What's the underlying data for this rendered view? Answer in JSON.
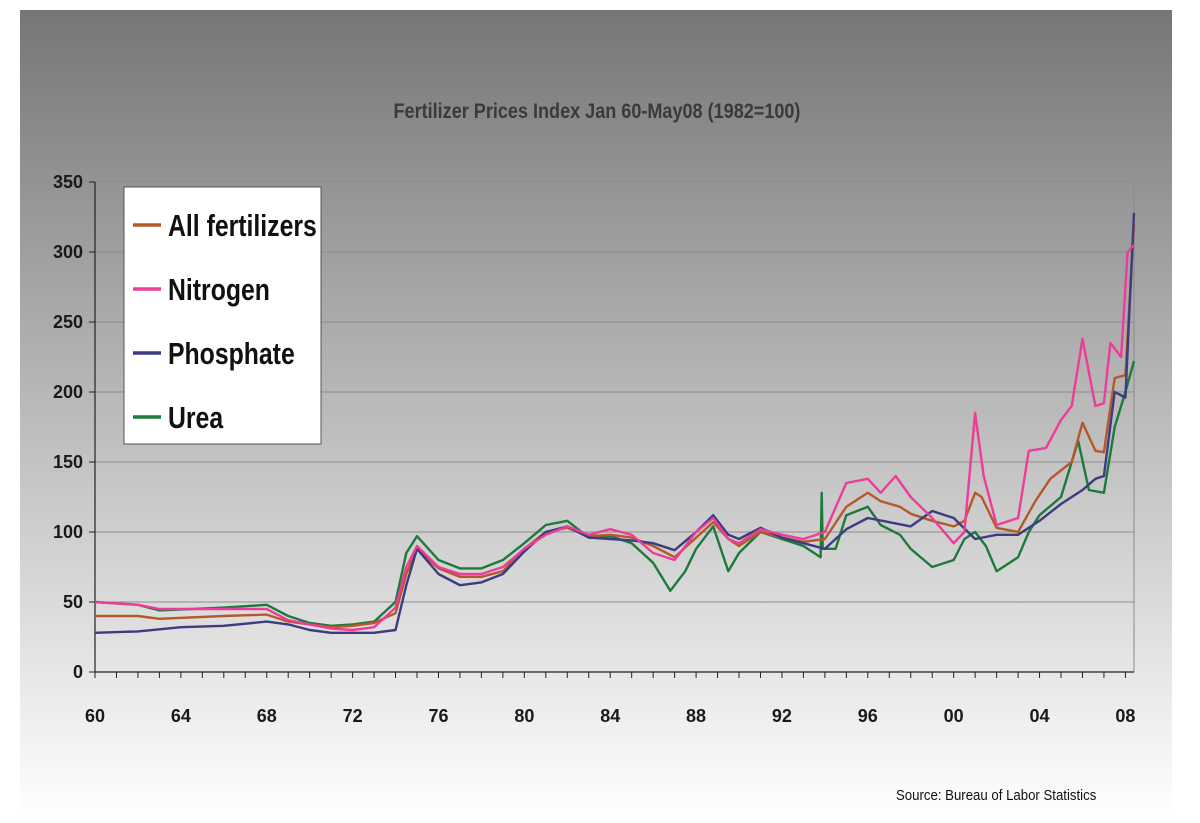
{
  "colors": {
    "background_top": "#767676",
    "background_bottom": "#ffffff"
  },
  "source": "Source: Bureau of Labor Statistics",
  "chart_data": {
    "type": "line",
    "title": "Fertilizer Prices Index Jan 60-May08 (1982=100)",
    "xlabel": "",
    "ylabel": "",
    "xlim": [
      1960,
      2008.4
    ],
    "ylim": [
      0,
      350
    ],
    "x_ticks": [
      1960,
      1964,
      1968,
      1972,
      1976,
      1980,
      1984,
      1988,
      1992,
      1996,
      2000,
      2004,
      2008
    ],
    "x_tick_labels": [
      "60",
      "64",
      "68",
      "72",
      "76",
      "80",
      "84",
      "88",
      "92",
      "96",
      "00",
      "04",
      "08"
    ],
    "y_ticks": [
      0,
      50,
      100,
      150,
      200,
      250,
      300,
      350
    ],
    "y_tick_labels": [
      "0",
      "50",
      "100",
      "150",
      "200",
      "250",
      "300",
      "350"
    ],
    "grid": "horizontal",
    "legend_position": "top-left",
    "series": [
      {
        "name": "All fertilizers",
        "color": "#b5592a",
        "points": [
          [
            1960,
            40
          ],
          [
            1962,
            40
          ],
          [
            1963,
            38
          ],
          [
            1966,
            40
          ],
          [
            1968,
            41
          ],
          [
            1969,
            36
          ],
          [
            1970,
            34
          ],
          [
            1971,
            32
          ],
          [
            1972,
            33
          ],
          [
            1973,
            35
          ],
          [
            1974,
            42
          ],
          [
            1974.5,
            70
          ],
          [
            1975,
            88
          ],
          [
            1976,
            74
          ],
          [
            1977,
            68
          ],
          [
            1978,
            68
          ],
          [
            1979,
            72
          ],
          [
            1980,
            88
          ],
          [
            1981,
            100
          ],
          [
            1982,
            103
          ],
          [
            1983,
            97
          ],
          [
            1984,
            98
          ],
          [
            1985,
            96
          ],
          [
            1986,
            90
          ],
          [
            1987,
            82
          ],
          [
            1988,
            96
          ],
          [
            1988.8,
            107
          ],
          [
            1989.5,
            95
          ],
          [
            1990,
            90
          ],
          [
            1991,
            100
          ],
          [
            1992,
            96
          ],
          [
            1993,
            93
          ],
          [
            1994,
            95
          ],
          [
            1995,
            118
          ],
          [
            1996,
            128
          ],
          [
            1996.6,
            122
          ],
          [
            1997.5,
            118
          ],
          [
            1998,
            113
          ],
          [
            1999,
            108
          ],
          [
            2000,
            104
          ],
          [
            2000.5,
            108
          ],
          [
            2001,
            128
          ],
          [
            2001.3,
            125
          ],
          [
            2002,
            103
          ],
          [
            2003,
            100
          ],
          [
            2003.8,
            122
          ],
          [
            2004.5,
            138
          ],
          [
            2005.5,
            150
          ],
          [
            2006,
            178
          ],
          [
            2006.6,
            158
          ],
          [
            2007,
            157
          ],
          [
            2007.5,
            210
          ],
          [
            2008,
            212
          ],
          [
            2008.4,
            320
          ]
        ]
      },
      {
        "name": "Nitrogen",
        "color": "#ee3c9a",
        "points": [
          [
            1960,
            50
          ],
          [
            1962,
            48
          ],
          [
            1963,
            45
          ],
          [
            1966,
            45
          ],
          [
            1968,
            45
          ],
          [
            1969,
            37
          ],
          [
            1970,
            34
          ],
          [
            1971,
            31
          ],
          [
            1972,
            30
          ],
          [
            1973,
            32
          ],
          [
            1974,
            46
          ],
          [
            1974.5,
            75
          ],
          [
            1975,
            90
          ],
          [
            1976,
            75
          ],
          [
            1977,
            70
          ],
          [
            1978,
            70
          ],
          [
            1979,
            75
          ],
          [
            1980,
            88
          ],
          [
            1981,
            98
          ],
          [
            1982,
            104
          ],
          [
            1983,
            98
          ],
          [
            1984,
            102
          ],
          [
            1985,
            98
          ],
          [
            1986,
            85
          ],
          [
            1987,
            80
          ],
          [
            1988,
            100
          ],
          [
            1988.8,
            110
          ],
          [
            1989.5,
            95
          ],
          [
            1990,
            92
          ],
          [
            1991,
            102
          ],
          [
            1992,
            98
          ],
          [
            1993,
            95
          ],
          [
            1994,
            100
          ],
          [
            1995,
            135
          ],
          [
            1996,
            138
          ],
          [
            1996.6,
            128
          ],
          [
            1997.3,
            140
          ],
          [
            1998,
            125
          ],
          [
            1999,
            110
          ],
          [
            2000,
            92
          ],
          [
            2000.5,
            100
          ],
          [
            2001,
            185
          ],
          [
            2001.4,
            140
          ],
          [
            2002,
            105
          ],
          [
            2003,
            110
          ],
          [
            2003.5,
            158
          ],
          [
            2004.3,
            160
          ],
          [
            2005,
            180
          ],
          [
            2005.5,
            190
          ],
          [
            2006,
            238
          ],
          [
            2006.6,
            190
          ],
          [
            2007,
            192
          ],
          [
            2007.3,
            235
          ],
          [
            2007.8,
            225
          ],
          [
            2008.1,
            300
          ],
          [
            2008.4,
            305
          ]
        ]
      },
      {
        "name": "Phosphate",
        "color": "#3c3c80",
        "points": [
          [
            1960,
            28
          ],
          [
            1962,
            29
          ],
          [
            1964,
            32
          ],
          [
            1966,
            33
          ],
          [
            1968,
            36
          ],
          [
            1969,
            34
          ],
          [
            1970,
            30
          ],
          [
            1971,
            28
          ],
          [
            1972,
            28
          ],
          [
            1973,
            28
          ],
          [
            1974,
            30
          ],
          [
            1974.5,
            62
          ],
          [
            1975,
            88
          ],
          [
            1976,
            70
          ],
          [
            1977,
            62
          ],
          [
            1978,
            64
          ],
          [
            1979,
            70
          ],
          [
            1980,
            86
          ],
          [
            1981,
            100
          ],
          [
            1982,
            104
          ],
          [
            1983,
            96
          ],
          [
            1984,
            95
          ],
          [
            1985,
            94
          ],
          [
            1986,
            92
          ],
          [
            1987,
            87
          ],
          [
            1988,
            100
          ],
          [
            1988.8,
            112
          ],
          [
            1989.5,
            98
          ],
          [
            1990,
            95
          ],
          [
            1991,
            103
          ],
          [
            1992,
            96
          ],
          [
            1993,
            92
          ],
          [
            1994,
            88
          ],
          [
            1995,
            102
          ],
          [
            1996,
            110
          ],
          [
            1997,
            107
          ],
          [
            1998,
            104
          ],
          [
            1999,
            115
          ],
          [
            2000,
            110
          ],
          [
            2001,
            95
          ],
          [
            2002,
            98
          ],
          [
            2003,
            98
          ],
          [
            2004,
            108
          ],
          [
            2005,
            120
          ],
          [
            2006,
            130
          ],
          [
            2006.6,
            138
          ],
          [
            2007,
            140
          ],
          [
            2007.5,
            200
          ],
          [
            2008,
            196
          ],
          [
            2008.4,
            328
          ]
        ]
      },
      {
        "name": "Urea",
        "color": "#1c7a3c",
        "points": [
          [
            1960,
            50
          ],
          [
            1962,
            48
          ],
          [
            1963,
            44
          ],
          [
            1966,
            46
          ],
          [
            1968,
            48
          ],
          [
            1969,
            40
          ],
          [
            1970,
            35
          ],
          [
            1971,
            33
          ],
          [
            1972,
            34
          ],
          [
            1973,
            36
          ],
          [
            1974,
            50
          ],
          [
            1974.5,
            85
          ],
          [
            1975,
            97
          ],
          [
            1976,
            80
          ],
          [
            1977,
            74
          ],
          [
            1978,
            74
          ],
          [
            1979,
            80
          ],
          [
            1980,
            92
          ],
          [
            1981,
            105
          ],
          [
            1982,
            108
          ],
          [
            1983,
            96
          ],
          [
            1984,
            97
          ],
          [
            1985,
            92
          ],
          [
            1986,
            78
          ],
          [
            1986.8,
            58
          ],
          [
            1987.5,
            72
          ],
          [
            1988,
            88
          ],
          [
            1988.8,
            104
          ],
          [
            1989.5,
            72
          ],
          [
            1990,
            85
          ],
          [
            1991,
            100
          ],
          [
            1992,
            95
          ],
          [
            1993,
            90
          ],
          [
            1993.8,
            82
          ],
          [
            1993.85,
            128
          ],
          [
            1993.9,
            88
          ],
          [
            1994.5,
            88
          ],
          [
            1995,
            112
          ],
          [
            1996,
            118
          ],
          [
            1996.6,
            105
          ],
          [
            1997.5,
            98
          ],
          [
            1998,
            88
          ],
          [
            1999,
            75
          ],
          [
            2000,
            80
          ],
          [
            2000.5,
            95
          ],
          [
            2001,
            100
          ],
          [
            2001.5,
            90
          ],
          [
            2002,
            72
          ],
          [
            2003,
            82
          ],
          [
            2003.5,
            100
          ],
          [
            2004,
            112
          ],
          [
            2005,
            125
          ],
          [
            2005.8,
            165
          ],
          [
            2006.3,
            130
          ],
          [
            2007,
            128
          ],
          [
            2007.5,
            175
          ],
          [
            2008,
            200
          ],
          [
            2008.4,
            222
          ]
        ]
      }
    ]
  }
}
